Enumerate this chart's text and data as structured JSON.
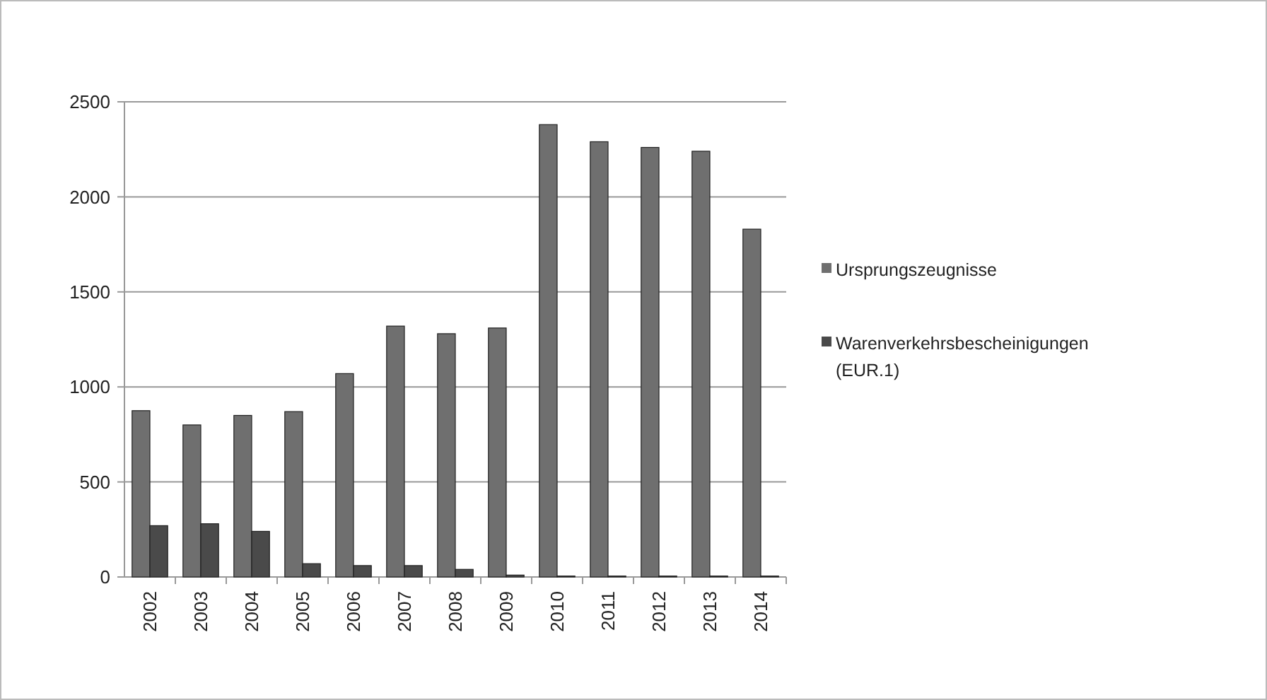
{
  "chart_data": {
    "type": "bar",
    "categories": [
      "2002",
      "2003",
      "2004",
      "2005",
      "2006",
      "2007",
      "2008",
      "2009",
      "2010",
      "2011",
      "2012",
      "2013",
      "2014"
    ],
    "series": [
      {
        "name": "Ursprungszeugnisse",
        "color": "#6f6f6f",
        "values": [
          875,
          800,
          850,
          870,
          1070,
          1320,
          1280,
          1310,
          2380,
          2290,
          2260,
          2240,
          1830
        ]
      },
      {
        "name": "Warenverkehrsbescheinigungen (EUR.1)",
        "color": "#4a4a4a",
        "values": [
          270,
          280,
          240,
          70,
          60,
          60,
          40,
          10,
          5,
          5,
          5,
          5,
          5
        ]
      }
    ],
    "ylim": [
      0,
      2500
    ],
    "yticks": [
      0,
      500,
      1000,
      1500,
      2000,
      2500
    ],
    "grid": "y",
    "legend": "right"
  }
}
